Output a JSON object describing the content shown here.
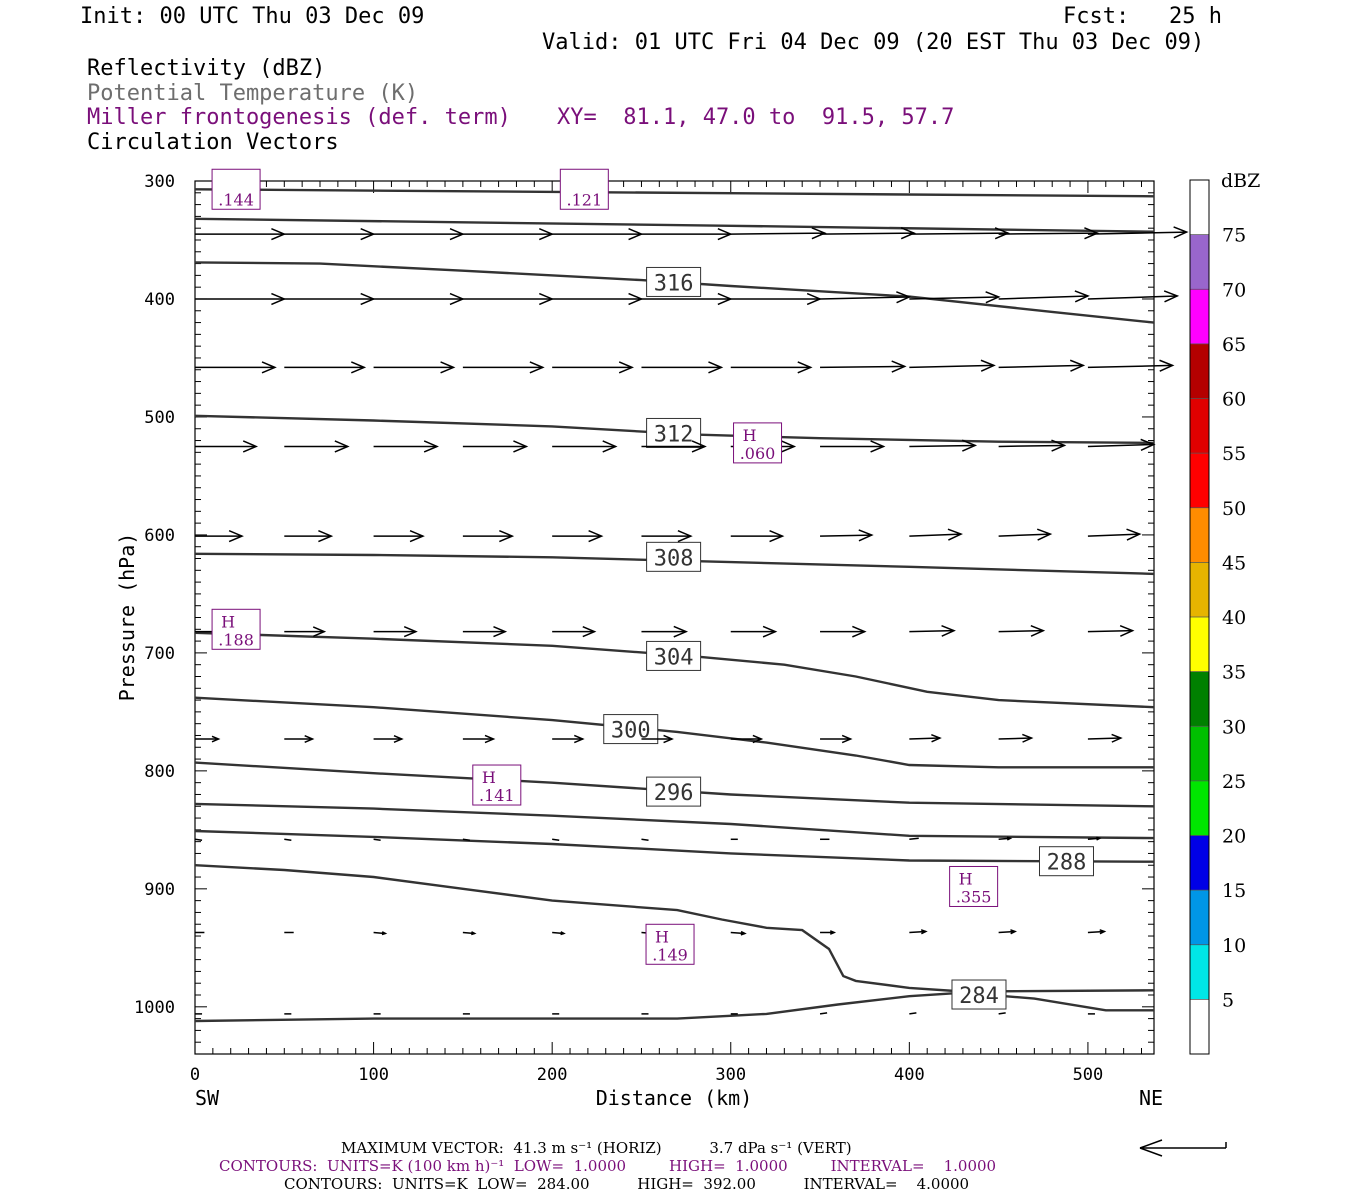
{
  "header": {
    "init": "Init: 00 UTC Thu 03 Dec 09",
    "fcst": "Fcst:   25 h",
    "valid": "Valid: 01 UTC Fri 04 Dec 09 (20 EST Thu 03 Dec 09)"
  },
  "fields": {
    "reflectivity": "Reflectivity (dBZ)",
    "theta": "Potential Temperature (K)",
    "miller": "Miller frontogenesis (def. term)",
    "xy": "XY=  81.1, 47.0 to  91.5, 57.7",
    "vectors": "Circulation Vectors"
  },
  "colors": {
    "purple": "#7a0f7a",
    "theta_line": "#333333",
    "arrow": "#000000"
  },
  "chart_data": {
    "type": "cross-section",
    "xlabel": "Distance (km)",
    "ylabel": "Pressure (hPa)",
    "xlim": [
      0,
      537
    ],
    "ylim": [
      1040,
      300
    ],
    "x_ticks": [
      "0",
      "100",
      "200",
      "300",
      "400",
      "500"
    ],
    "y_ticks": [
      "300",
      "400",
      "500",
      "600",
      "700",
      "800",
      "900",
      "1000"
    ],
    "x_tick_values": [
      0,
      100,
      200,
      300,
      400,
      500
    ],
    "y_tick_values": [
      300,
      400,
      500,
      600,
      700,
      800,
      900,
      1000
    ],
    "left_end": "SW",
    "right_end": "NE",
    "theta_contours": [
      {
        "label": "",
        "label_at": null,
        "points": [
          [
            0,
            307
          ],
          [
            537,
            313
          ]
        ]
      },
      {
        "label": "",
        "label_at": null,
        "points": [
          [
            0,
            332
          ],
          [
            150,
            335
          ],
          [
            300,
            338
          ],
          [
            537,
            343
          ]
        ]
      },
      {
        "label": "316",
        "label_at": [
          268,
          386
        ],
        "points": [
          [
            0,
            369
          ],
          [
            70,
            370
          ],
          [
            150,
            376
          ],
          [
            250,
            384
          ],
          [
            300,
            389
          ],
          [
            400,
            398
          ],
          [
            480,
            411
          ],
          [
            537,
            420
          ]
        ]
      },
      {
        "label": "312",
        "label_at": [
          268,
          514
        ],
        "points": [
          [
            0,
            499
          ],
          [
            100,
            503
          ],
          [
            200,
            508
          ],
          [
            280,
            515
          ],
          [
            350,
            518
          ],
          [
            450,
            521
          ],
          [
            537,
            522
          ]
        ]
      },
      {
        "label": "308",
        "label_at": [
          268,
          619
        ],
        "points": [
          [
            0,
            616
          ],
          [
            100,
            617
          ],
          [
            200,
            619
          ],
          [
            300,
            623
          ],
          [
            400,
            627
          ],
          [
            537,
            633
          ]
        ]
      },
      {
        "label": "304",
        "label_at": [
          268,
          703
        ],
        "points": [
          [
            0,
            683
          ],
          [
            100,
            688
          ],
          [
            200,
            694
          ],
          [
            280,
            703
          ],
          [
            330,
            710
          ],
          [
            370,
            720
          ],
          [
            410,
            733
          ],
          [
            450,
            740
          ],
          [
            537,
            746
          ]
        ]
      },
      {
        "label": "300",
        "label_at": [
          244,
          765
        ],
        "points": [
          [
            0,
            738
          ],
          [
            100,
            746
          ],
          [
            200,
            757
          ],
          [
            270,
            767
          ],
          [
            320,
            776
          ],
          [
            370,
            787
          ],
          [
            400,
            795
          ],
          [
            450,
            797
          ],
          [
            537,
            797
          ]
        ]
      },
      {
        "label": "296",
        "label_at": [
          268,
          818
        ],
        "points": [
          [
            0,
            793
          ],
          [
            100,
            802
          ],
          [
            200,
            810
          ],
          [
            300,
            820
          ],
          [
            400,
            827
          ],
          [
            537,
            830
          ]
        ]
      },
      {
        "label": "",
        "label_at": null,
        "points": [
          [
            0,
            828
          ],
          [
            100,
            832
          ],
          [
            200,
            838
          ],
          [
            300,
            845
          ],
          [
            400,
            855
          ],
          [
            537,
            857
          ]
        ]
      },
      {
        "label": "288",
        "label_at": [
          488,
          877
        ],
        "points": [
          [
            0,
            851
          ],
          [
            100,
            856
          ],
          [
            200,
            862
          ],
          [
            300,
            870
          ],
          [
            400,
            876
          ],
          [
            537,
            877
          ]
        ]
      },
      {
        "label": "",
        "label_at": null,
        "points": [
          [
            0,
            880
          ],
          [
            50,
            884
          ],
          [
            100,
            890
          ],
          [
            150,
            900
          ],
          [
            200,
            910
          ],
          [
            270,
            918
          ],
          [
            295,
            926
          ],
          [
            320,
            933
          ],
          [
            340,
            935
          ],
          [
            355,
            951
          ],
          [
            363,
            974
          ],
          [
            370,
            978
          ],
          [
            400,
            984
          ],
          [
            430,
            987
          ],
          [
            537,
            986
          ]
        ]
      },
      {
        "label": "284",
        "label_at": [
          439,
          990
        ],
        "points": [
          [
            0,
            1012
          ],
          [
            100,
            1010
          ],
          [
            200,
            1010
          ],
          [
            270,
            1010
          ],
          [
            320,
            1006
          ],
          [
            360,
            998
          ],
          [
            400,
            991
          ],
          [
            430,
            988
          ],
          [
            470,
            993
          ],
          [
            510,
            1003
          ],
          [
            537,
            1003
          ]
        ]
      }
    ],
    "frontogenesis_labels": [
      {
        "mark": "",
        "value": ".144",
        "at": [
          23,
          307
        ]
      },
      {
        "mark": "",
        "value": ".121",
        "at": [
          218,
          307
        ]
      },
      {
        "mark": "H",
        "value": ".060",
        "at": [
          315,
          522
        ]
      },
      {
        "mark": "H",
        "value": ".188",
        "at": [
          23,
          680
        ]
      },
      {
        "mark": "H",
        "value": ".141",
        "at": [
          169,
          812
        ]
      },
      {
        "mark": "H",
        "value": ".355",
        "at": [
          436,
          898
        ]
      },
      {
        "mark": "H",
        "value": ".149",
        "at": [
          266,
          947
        ]
      }
    ],
    "vector_rows": [
      {
        "p": 345,
        "u": [
          38,
          38,
          38,
          38,
          38,
          38,
          40,
          40,
          42,
          42,
          42
        ],
        "w": [
          0,
          0,
          0,
          0,
          0,
          0,
          -1,
          -1,
          -1,
          -1,
          -2
        ]
      },
      {
        "p": 400,
        "u": [
          38,
          38,
          38,
          38,
          38,
          38,
          38,
          38,
          38,
          38,
          38
        ],
        "w": [
          0,
          0,
          0,
          0,
          0,
          0,
          0,
          -2,
          -2,
          -3,
          -3
        ]
      },
      {
        "p": 458,
        "u": [
          34,
          34,
          34,
          34,
          34,
          34,
          34,
          36,
          36,
          36,
          36
        ],
        "w": [
          0,
          0,
          0,
          0,
          0,
          0,
          0,
          -1,
          -2,
          -2,
          -2
        ]
      },
      {
        "p": 525,
        "u": [
          26,
          27,
          27,
          27,
          27,
          27,
          27,
          27,
          28,
          28,
          28
        ],
        "w": [
          0,
          0,
          0,
          0,
          0,
          0,
          0,
          0,
          -1,
          -1,
          -2
        ]
      },
      {
        "p": 601,
        "u": [
          20,
          20,
          21,
          21,
          21,
          21,
          22,
          22,
          22,
          22,
          22
        ],
        "w": [
          0,
          0,
          0,
          0,
          0,
          0,
          0,
          -1,
          -2,
          -2,
          -2
        ]
      },
      {
        "p": 682,
        "u": [
          17,
          17,
          18,
          18,
          18,
          19,
          19,
          19,
          19,
          19,
          19
        ],
        "w": [
          0,
          0,
          0,
          0,
          0,
          0,
          0,
          0,
          -1,
          -1,
          -1
        ]
      },
      {
        "p": 773,
        "u": [
          10,
          12,
          12,
          13,
          13,
          13,
          13,
          13,
          13,
          14,
          14
        ],
        "w": [
          0,
          0,
          0,
          0,
          0,
          0,
          0,
          0,
          -1,
          -1,
          -1
        ]
      },
      {
        "p": 858,
        "u": [
          3,
          3,
          3,
          3,
          3,
          3,
          3,
          4,
          4,
          5,
          5
        ],
        "w": [
          1,
          1,
          1,
          1,
          1,
          1,
          0,
          0,
          -1,
          -1,
          -1
        ]
      },
      {
        "p": 937,
        "u": [
          4,
          4,
          5,
          5,
          5,
          5,
          6,
          6,
          7,
          7,
          7
        ],
        "w": [
          0,
          0,
          1,
          1,
          1,
          1,
          1,
          0,
          -1,
          -1,
          -1
        ]
      },
      {
        "p": 1006,
        "u": [
          3,
          3,
          3,
          3,
          3,
          3,
          3,
          3,
          3,
          3,
          3
        ],
        "w": [
          0,
          0,
          0,
          0,
          0,
          0,
          0,
          -1,
          -1,
          -1,
          0
        ]
      }
    ],
    "vector_x": [
      0,
      50,
      100,
      150,
      200,
      250,
      300,
      350,
      400,
      450,
      500
    ],
    "colorbar": {
      "title": "dBZ",
      "labels": [
        "5",
        "10",
        "15",
        "20",
        "25",
        "30",
        "35",
        "40",
        "45",
        "50",
        "55",
        "60",
        "65",
        "70",
        "75"
      ],
      "colors": [
        "#ffffff",
        "#00e6e6",
        "#0096e6",
        "#0000e6",
        "#00e600",
        "#00c000",
        "#008000",
        "#ffff00",
        "#e6b400",
        "#ff8c00",
        "#ff0000",
        "#e00000",
        "#b40000",
        "#ff00ff",
        "#9966cc",
        "#ffffff"
      ]
    }
  },
  "footer": {
    "max_vector": "MAXIMUM VECTOR:  41.3 m s⁻¹ (HORIZ)          3.7 dPa s⁻¹ (VERT)",
    "contours_purple": "CONTOURS:  UNITS=K (100 km h)⁻¹  LOW=  1.0000         HIGH=  1.0000         INTERVAL=    1.0000",
    "contours_black": "CONTOURS:  UNITS=K  LOW=  284.00          HIGH=  392.00          INTERVAL=    4.0000"
  }
}
